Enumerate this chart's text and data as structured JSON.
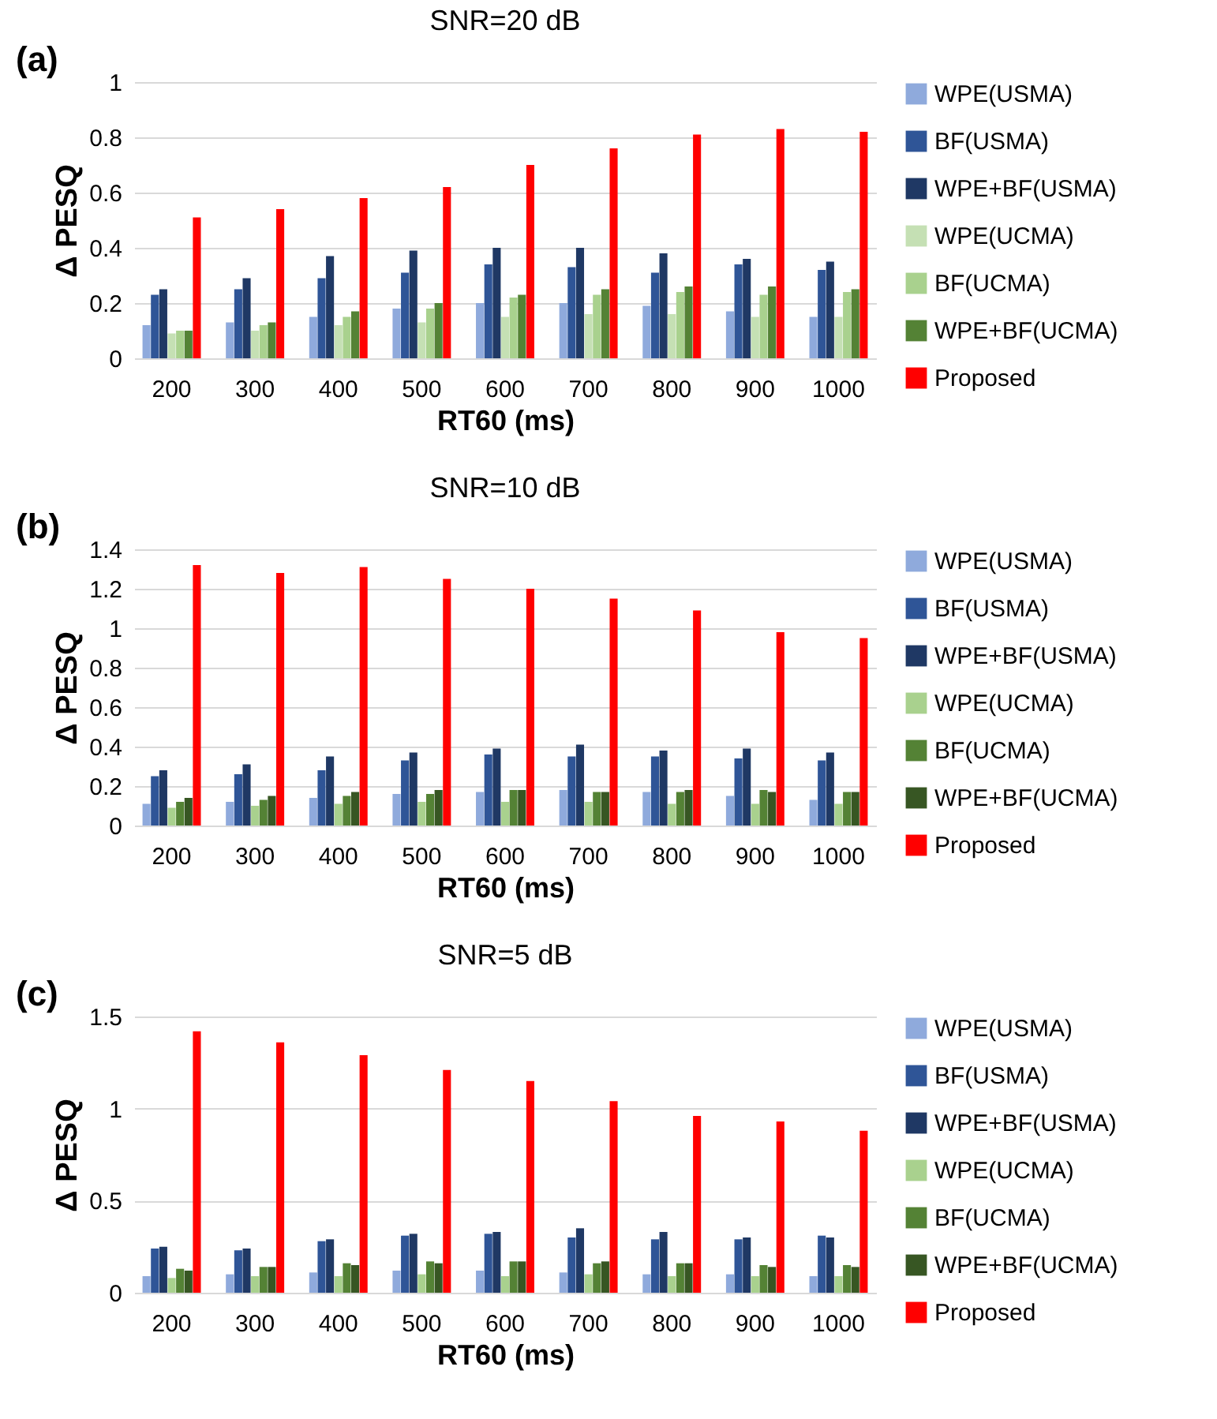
{
  "chart_data": [
    {
      "type": "bar",
      "title": "SNR=20 dB",
      "annotations": [
        "(a)"
      ],
      "xlabel": "RT60 (ms)",
      "ylabel": "Δ PESQ",
      "categories": [
        "200",
        "300",
        "400",
        "500",
        "600",
        "700",
        "800",
        "900",
        "1000"
      ],
      "ylim": [
        0,
        1
      ],
      "yticks": [
        0,
        0.2,
        0.4,
        0.6,
        0.8,
        1
      ],
      "grid": "y",
      "legend": "right",
      "series": [
        {
          "name": "WPE(USMA)",
          "color": "#8faadc",
          "values": [
            0.12,
            0.13,
            0.15,
            0.18,
            0.2,
            0.2,
            0.19,
            0.17,
            0.15
          ]
        },
        {
          "name": "BF(USMA)",
          "color": "#2f5597",
          "values": [
            0.23,
            0.25,
            0.29,
            0.31,
            0.34,
            0.33,
            0.31,
            0.34,
            0.32
          ]
        },
        {
          "name": "WPE+BF(USMA)",
          "color": "#1f3864",
          "values": [
            0.25,
            0.29,
            0.37,
            0.39,
            0.4,
            0.4,
            0.38,
            0.36,
            0.35
          ]
        },
        {
          "name": "WPE(UCMA)",
          "color": "#c5e0b4",
          "values": [
            0.09,
            0.1,
            0.12,
            0.13,
            0.15,
            0.16,
            0.16,
            0.15,
            0.15
          ]
        },
        {
          "name": "BF(UCMA)",
          "color": "#a9d18e",
          "values": [
            0.1,
            0.12,
            0.15,
            0.18,
            0.22,
            0.23,
            0.24,
            0.23,
            0.24
          ]
        },
        {
          "name": "WPE+BF(UCMA)",
          "color": "#548235",
          "values": [
            0.1,
            0.13,
            0.17,
            0.2,
            0.23,
            0.25,
            0.26,
            0.26,
            0.25
          ]
        },
        {
          "name": "Proposed",
          "color": "#ff0000",
          "values": [
            0.51,
            0.54,
            0.58,
            0.62,
            0.7,
            0.76,
            0.81,
            0.83,
            0.82
          ]
        }
      ]
    },
    {
      "type": "bar",
      "title": "SNR=10 dB",
      "annotations": [
        "(b)"
      ],
      "xlabel": "RT60 (ms)",
      "ylabel": "Δ PESQ",
      "categories": [
        "200",
        "300",
        "400",
        "500",
        "600",
        "700",
        "800",
        "900",
        "1000"
      ],
      "ylim": [
        0,
        1.4
      ],
      "yticks": [
        0,
        0.2,
        0.4,
        0.6,
        0.8,
        1,
        1.2,
        1.4
      ],
      "grid": "y",
      "legend": "right",
      "series": [
        {
          "name": "WPE(USMA)",
          "color": "#8faadc",
          "values": [
            0.11,
            0.12,
            0.14,
            0.16,
            0.17,
            0.18,
            0.17,
            0.15,
            0.13
          ]
        },
        {
          "name": "BF(USMA)",
          "color": "#2f5597",
          "values": [
            0.25,
            0.26,
            0.28,
            0.33,
            0.36,
            0.35,
            0.35,
            0.34,
            0.33
          ]
        },
        {
          "name": "WPE+BF(USMA)",
          "color": "#1f3864",
          "values": [
            0.28,
            0.31,
            0.35,
            0.37,
            0.39,
            0.41,
            0.38,
            0.39,
            0.37
          ]
        },
        {
          "name": "WPE(UCMA)",
          "color": "#a9d18e",
          "values": [
            0.09,
            0.1,
            0.11,
            0.12,
            0.12,
            0.12,
            0.11,
            0.11,
            0.11
          ]
        },
        {
          "name": "BF(UCMA)",
          "color": "#548235",
          "values": [
            0.12,
            0.13,
            0.15,
            0.16,
            0.18,
            0.17,
            0.17,
            0.18,
            0.17
          ]
        },
        {
          "name": "WPE+BF(UCMA)",
          "color": "#375623",
          "values": [
            0.14,
            0.15,
            0.17,
            0.18,
            0.18,
            0.17,
            0.18,
            0.17,
            0.17
          ]
        },
        {
          "name": "Proposed",
          "color": "#ff0000",
          "values": [
            1.32,
            1.28,
            1.31,
            1.25,
            1.2,
            1.15,
            1.09,
            0.98,
            0.95
          ]
        }
      ]
    },
    {
      "type": "bar",
      "title": "SNR=5 dB",
      "annotations": [
        "(c)"
      ],
      "xlabel": "RT60 (ms)",
      "ylabel": "Δ PESQ",
      "categories": [
        "200",
        "300",
        "400",
        "500",
        "600",
        "700",
        "800",
        "900",
        "1000"
      ],
      "ylim": [
        0,
        1.5
      ],
      "yticks": [
        0,
        0.5,
        1,
        1.5
      ],
      "grid": "y",
      "legend": "right",
      "series": [
        {
          "name": "WPE(USMA)",
          "color": "#8faadc",
          "values": [
            0.09,
            0.1,
            0.11,
            0.12,
            0.12,
            0.11,
            0.1,
            0.1,
            0.09
          ]
        },
        {
          "name": "BF(USMA)",
          "color": "#2f5597",
          "values": [
            0.24,
            0.23,
            0.28,
            0.31,
            0.32,
            0.3,
            0.29,
            0.29,
            0.31
          ]
        },
        {
          "name": "WPE+BF(USMA)",
          "color": "#1f3864",
          "values": [
            0.25,
            0.24,
            0.29,
            0.32,
            0.33,
            0.35,
            0.33,
            0.3,
            0.3
          ]
        },
        {
          "name": "WPE(UCMA)",
          "color": "#a9d18e",
          "values": [
            0.08,
            0.09,
            0.09,
            0.1,
            0.09,
            0.1,
            0.09,
            0.09,
            0.09
          ]
        },
        {
          "name": "BF(UCMA)",
          "color": "#548235",
          "values": [
            0.13,
            0.14,
            0.16,
            0.17,
            0.17,
            0.16,
            0.16,
            0.15,
            0.15
          ]
        },
        {
          "name": "WPE+BF(UCMA)",
          "color": "#375623",
          "values": [
            0.12,
            0.14,
            0.15,
            0.16,
            0.17,
            0.17,
            0.16,
            0.14,
            0.14
          ]
        },
        {
          "name": "Proposed",
          "color": "#ff0000",
          "values": [
            1.42,
            1.36,
            1.29,
            1.21,
            1.15,
            1.04,
            0.96,
            0.93,
            0.88
          ]
        }
      ]
    }
  ]
}
